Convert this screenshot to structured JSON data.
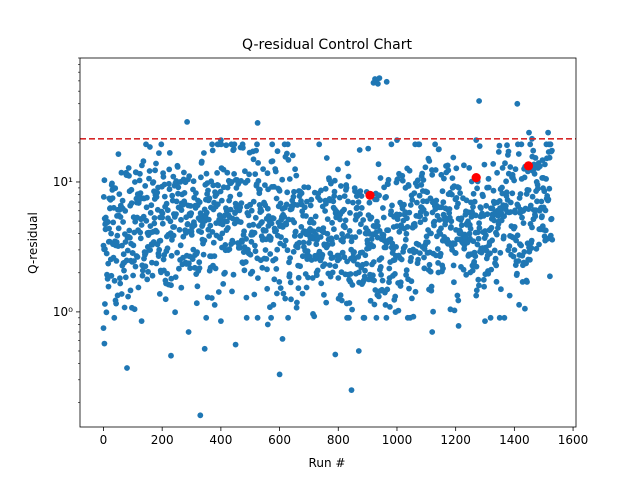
{
  "chart_data": {
    "type": "scatter",
    "title": "Q-residual Control Chart",
    "xlabel": "Run #",
    "ylabel": "Q-residual",
    "xlim": [
      -80,
      1610
    ],
    "ylim": [
      0.13,
      90
    ],
    "yscale": "log",
    "x_ticks": [
      0,
      200,
      400,
      600,
      800,
      1000,
      1200,
      1400,
      1600
    ],
    "y_ticks": [
      {
        "value": 1,
        "label": "10⁰"
      },
      {
        "value": 10,
        "label": "10¹"
      }
    ],
    "threshold": {
      "value": 21.5,
      "color": "#d62728",
      "style": "dashed"
    },
    "series": [
      {
        "role": "runs",
        "color": "#1f77b4",
        "n_points": 1530,
        "points": [
          [
            0,
            0.75
          ],
          [
            3,
            0.57
          ],
          [
            5,
            1.15
          ],
          [
            80,
            0.37
          ],
          [
            130,
            0.85
          ],
          [
            230,
            0.46
          ],
          [
            290,
            0.7
          ],
          [
            330,
            0.16
          ],
          [
            345,
            0.52
          ],
          [
            400,
            0.85
          ],
          [
            450,
            0.56
          ],
          [
            560,
            0.8
          ],
          [
            600,
            0.33
          ],
          [
            610,
            0.62
          ],
          [
            790,
            0.47
          ],
          [
            830,
            0.9
          ],
          [
            845,
            0.25
          ],
          [
            870,
            0.5
          ],
          [
            1120,
            0.7
          ],
          [
            1210,
            0.78
          ],
          [
            1300,
            0.85
          ],
          [
            1350,
            0.9
          ],
          [
            285,
            29
          ],
          [
            525,
            28.5
          ],
          [
            400,
            21
          ],
          [
            920,
            58
          ],
          [
            925,
            62
          ],
          [
            930,
            60
          ],
          [
            935,
            57
          ],
          [
            940,
            63
          ],
          [
            965,
            59
          ],
          [
            1000,
            21
          ],
          [
            1280,
            42
          ],
          [
            1410,
            40
          ],
          [
            1450,
            24
          ],
          [
            1515,
            24
          ],
          [
            1460,
            21.5
          ],
          [
            1270,
            21
          ]
        ]
      },
      {
        "role": "flagged",
        "color": "#ff0000",
        "points": [
          [
            908,
            7.9
          ],
          [
            1270,
            10.8
          ],
          [
            1448,
            13.3
          ]
        ]
      }
    ]
  }
}
